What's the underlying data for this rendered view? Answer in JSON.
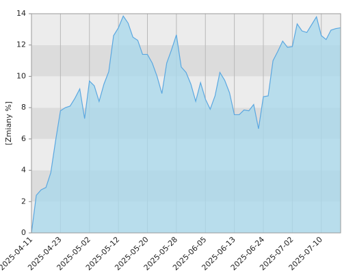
{
  "chart_data": {
    "type": "area",
    "y_label": "[Zmiany %]",
    "categories": [
      "2025-04-11",
      null,
      null,
      null,
      null,
      null,
      "2025-04-23",
      null,
      null,
      null,
      null,
      null,
      "2025-05-02",
      null,
      null,
      null,
      null,
      null,
      "2025-05-12",
      null,
      null,
      null,
      null,
      null,
      "2025-05-20",
      null,
      null,
      null,
      null,
      null,
      "2025-05-28",
      null,
      null,
      null,
      null,
      null,
      "2025-06-05",
      null,
      null,
      null,
      null,
      null,
      "2025-06-13",
      null,
      null,
      null,
      null,
      null,
      "2025-06-24",
      null,
      null,
      null,
      null,
      null,
      "2025-07-02",
      null,
      null,
      null,
      null,
      null,
      "2025-07-10",
      null,
      null,
      null,
      null
    ],
    "values": [
      0,
      2.4,
      2.75,
      2.9,
      3.85,
      5.9,
      7.8,
      8.0,
      8.1,
      8.6,
      9.2,
      7.3,
      9.7,
      9.4,
      8.4,
      9.5,
      10.3,
      12.6,
      13.1,
      13.85,
      13.4,
      12.5,
      12.3,
      11.4,
      11.4,
      10.85,
      10.0,
      8.9,
      10.85,
      11.7,
      12.65,
      10.6,
      10.25,
      9.5,
      8.4,
      9.6,
      8.55,
      7.9,
      8.75,
      10.25,
      9.75,
      8.95,
      7.55,
      7.55,
      7.85,
      7.8,
      8.2,
      6.65,
      8.7,
      8.75,
      11.0,
      11.6,
      12.25,
      11.85,
      11.9,
      13.35,
      12.9,
      12.8,
      13.3,
      13.8,
      12.6,
      12.35,
      12.95,
      13.05,
      13.1
    ],
    "color": "#5aa7e0",
    "fill": "#a9d8ec",
    "ylim": [
      0,
      14
    ],
    "yticks": [
      0,
      2,
      4,
      6,
      8,
      10,
      12,
      14
    ],
    "grid": true
  }
}
